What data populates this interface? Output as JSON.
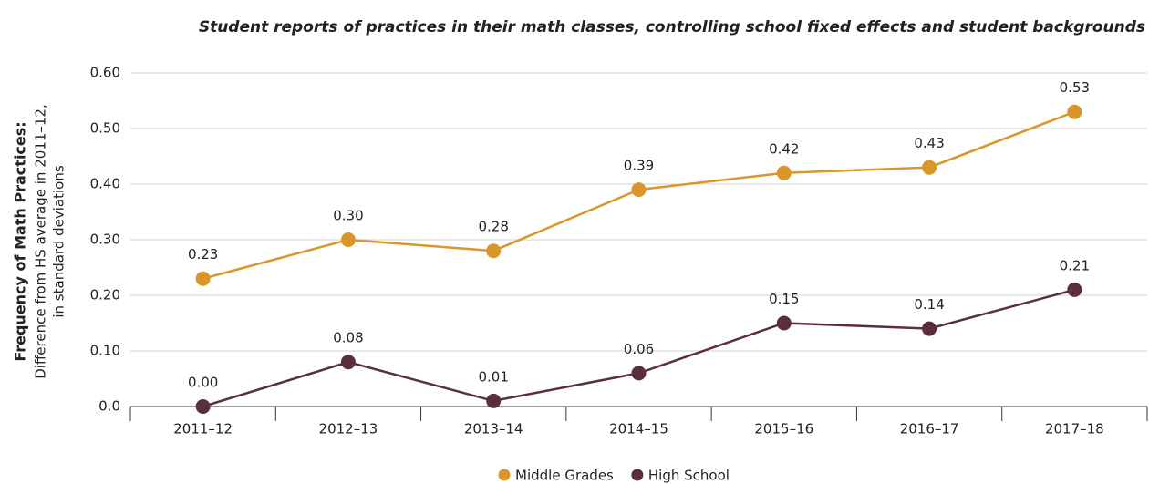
{
  "chart_data": {
    "type": "line",
    "title": "Student reports of practices in their math classes, controlling school fixed effects and student backgrounds",
    "ylabel": [
      "Frequency of Math Practices:",
      "Difference from HS average in 2011–12,",
      "in standard deviations"
    ],
    "categories": [
      "2011–12",
      "2012–13",
      "2013–14",
      "2014–15",
      "2015–16",
      "2016–17",
      "2017–18"
    ],
    "series": [
      {
        "name": "Middle Grades",
        "color": "#d9962b",
        "values": [
          0.23,
          0.3,
          0.28,
          0.39,
          0.42,
          0.43,
          0.53
        ],
        "value_labels": [
          "0.23",
          "0.30",
          "0.28",
          "0.39",
          "0.42",
          "0.43",
          "0.53"
        ]
      },
      {
        "name": "High School",
        "color": "#5b2e3e",
        "values": [
          0,
          0.08,
          0.01,
          0.06,
          0.15,
          0.14,
          0.21
        ],
        "value_labels": [
          "0.00",
          "0.08",
          "0.01",
          "0.06",
          "0.15",
          "0.14",
          "0.21"
        ]
      }
    ],
    "ylim": [
      0,
      0.6
    ],
    "yticks": [
      {
        "value": 0,
        "label": "0.0"
      },
      {
        "value": 0.1,
        "label": "0.10"
      },
      {
        "value": 0.2,
        "label": "0.20"
      },
      {
        "value": 0.3,
        "label": "0.30"
      },
      {
        "value": 0.4,
        "label": "0.40"
      },
      {
        "value": 0.5,
        "label": "0.50"
      },
      {
        "value": 0.6,
        "label": "0.60"
      }
    ],
    "grid": true,
    "legend": "bottom"
  }
}
